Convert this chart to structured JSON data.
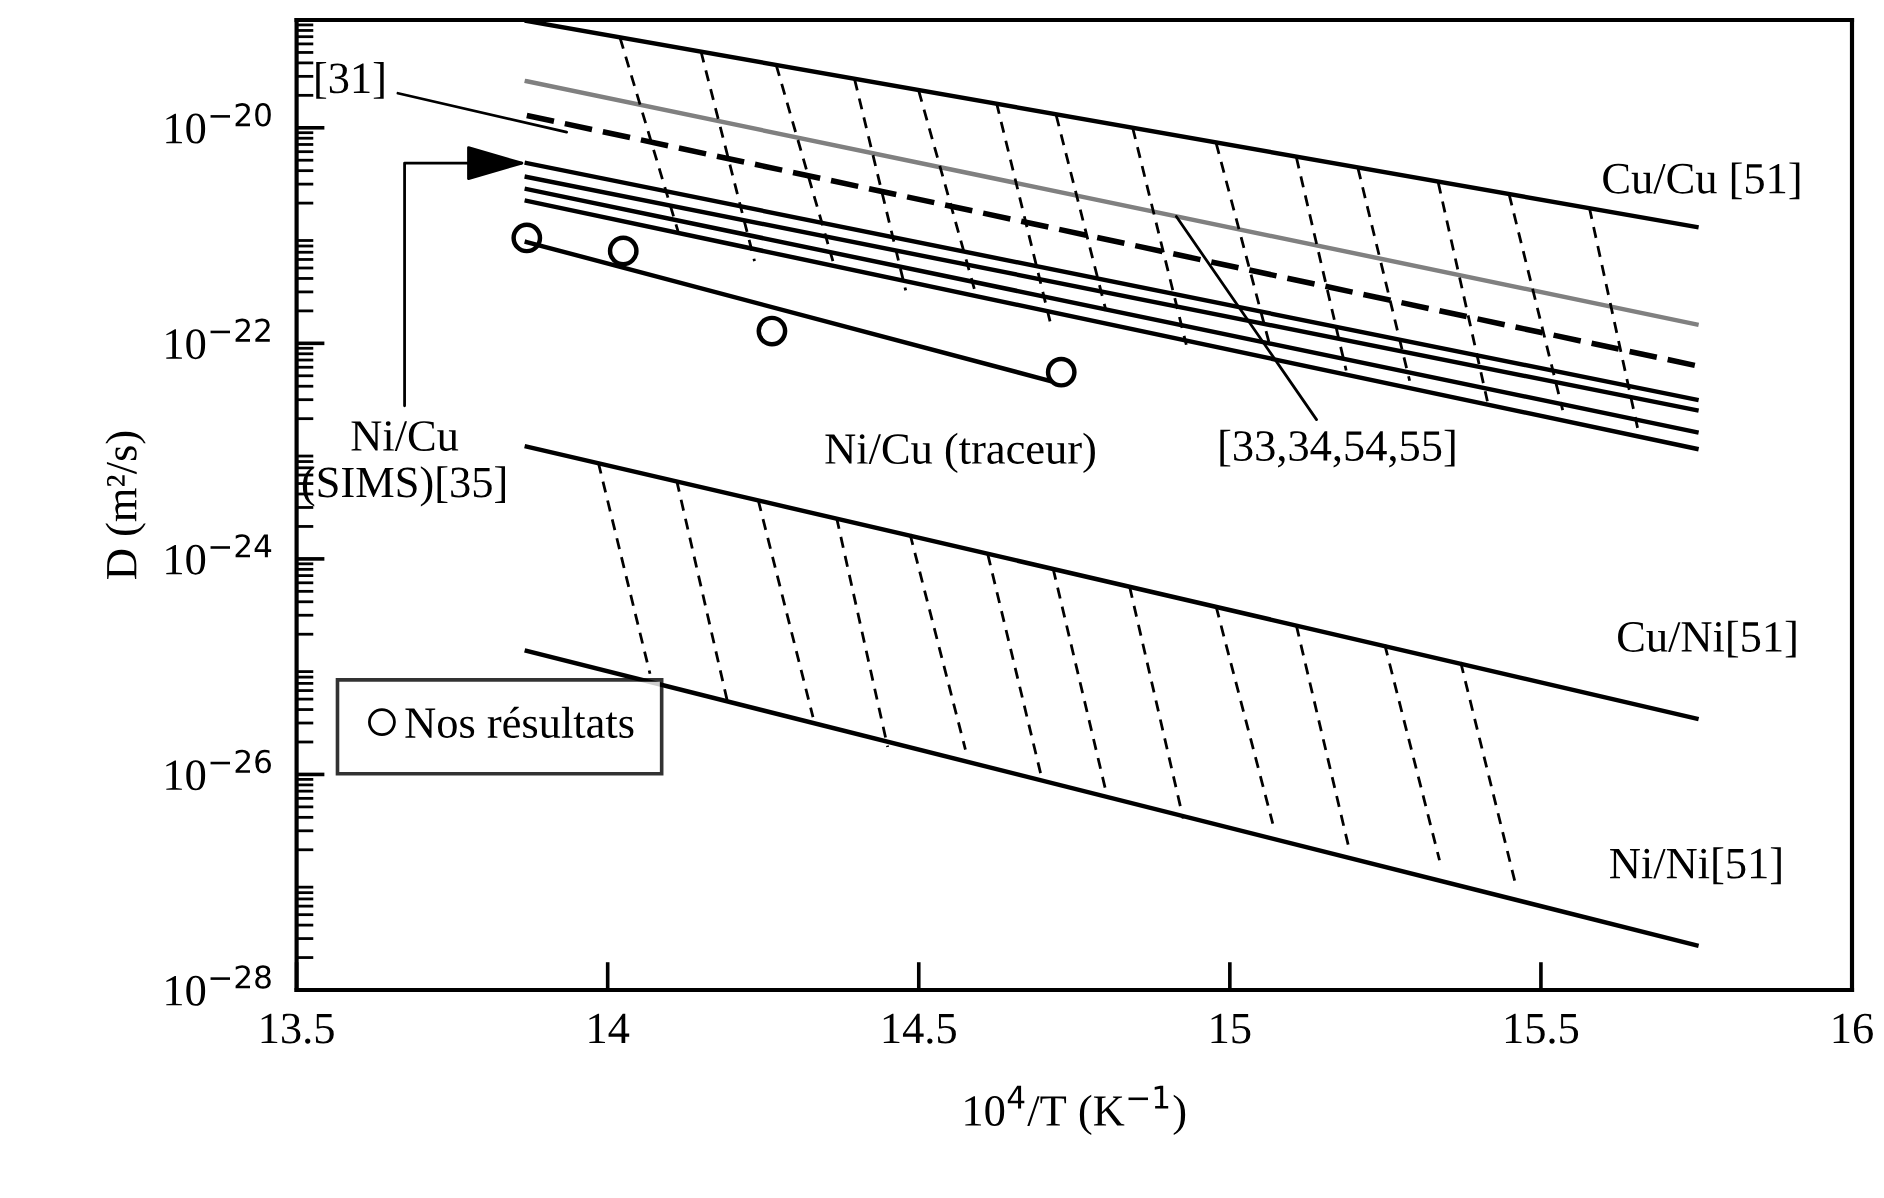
{
  "chart_data": {
    "type": "line",
    "xlabel": "10$^{4}$/T (K$^{−1}$)",
    "ylabel": "D (m²/s)",
    "log": "y",
    "grid": false,
    "legend": "lower left",
    "xlim": [
      13.5,
      16
    ],
    "xticks": [
      13.5,
      14,
      14.5,
      15,
      15.5,
      16
    ],
    "ylim": [
      1e-28,
      1e-19
    ],
    "yticks": [
      {
        "value": 1e-28,
        "label": "10$^{−28}$"
      },
      {
        "value": 1e-26,
        "label": "10$^{−26}$"
      },
      {
        "value": 1e-24,
        "label": "10$^{−24}$"
      },
      {
        "value": 1e-22,
        "label": "10$^{−22}$"
      },
      {
        "value": 1e-20,
        "label": "10$^{−20}$"
      }
    ],
    "series": [
      {
        "color": "#000000",
        "x": [
          13.87,
          15.75
        ],
        "values": [
          9.8e-20,
          1.2e-21
        ]
      },
      {
        "color": "#808080",
        "x": [
          13.87,
          15.75
        ],
        "values": [
          2.7e-20,
          1.5e-22
        ]
      },
      {
        "color": "#000000",
        "line_style": "dashed",
        "x": [
          13.87,
          15.75
        ],
        "values": [
          1.3e-20,
          6.2e-23
        ]
      },
      {
        "color": "#000000",
        "x": [
          13.87,
          15.75
        ],
        "values": [
          4.7e-21,
          3e-23
        ]
      },
      {
        "color": "#000000",
        "x": [
          13.87,
          15.75
        ],
        "values": [
          3.5e-21,
          2.4e-23
        ]
      },
      {
        "color": "#000000",
        "x": [
          13.87,
          15.75
        ],
        "values": [
          2.7e-21,
          1.5e-23
        ]
      },
      {
        "color": "#000000",
        "x": [
          13.87,
          15.75
        ],
        "values": [
          2.1e-21,
          1.05e-23
        ]
      },
      {
        "type": "scatter",
        "name": "Nos résultats",
        "marker": "circle",
        "color": "#000000",
        "x": [
          13.87,
          14.025,
          14.264,
          14.729
        ],
        "values": [
          9.5e-22,
          7.2e-22,
          1.3e-22,
          5.4e-23
        ]
      },
      {
        "color": "#000000",
        "x": [
          13.87,
          14.71
        ],
        "values": [
          8.7e-22,
          4.5e-23
        ]
      },
      {
        "color": "#000000",
        "x": [
          13.87,
          15.75
        ],
        "values": [
          1.1e-23,
          3.3e-26
        ]
      },
      {
        "color": "#000000",
        "x": [
          13.87,
          15.75
        ],
        "values": [
          1.4e-25,
          2.6e-28
        ]
      },
      {
        "type": "line",
        "color": "#000000",
        "line_style": "dotted",
        "x": [
          14.02,
          14.113
        ],
        "values": [
          6.8e-20,
          1.1e-21
        ]
      },
      {
        "type": "line",
        "color": "#000000",
        "line_style": "dotted",
        "x": [
          14.15,
          14.236
        ],
        "values": [
          5.1e-20,
          5.8e-22
        ]
      },
      {
        "type": "line",
        "color": "#000000",
        "line_style": "dotted",
        "x": [
          14.271,
          14.362
        ],
        "values": [
          3.8e-20,
          5.8e-22
        ]
      },
      {
        "type": "line",
        "color": "#000000",
        "line_style": "dotted",
        "x": [
          14.397,
          14.479
        ],
        "values": [
          2.8e-20,
          3.1e-22
        ]
      },
      {
        "type": "line",
        "color": "#000000",
        "line_style": "dotted",
        "x": [
          14.5,
          14.59
        ],
        "values": [
          2.2e-20,
          3.1e-22
        ]
      },
      {
        "type": "line",
        "color": "#000000",
        "line_style": "dotted",
        "x": [
          14.625,
          14.711
        ],
        "values": [
          1.7e-20,
          1.6e-22
        ]
      },
      {
        "type": "line",
        "color": "#000000",
        "line_style": "dotted",
        "x": [
          14.721,
          14.801
        ],
        "values": [
          1.3e-20,
          2e-22
        ]
      },
      {
        "type": "line",
        "color": "#000000",
        "line_style": "dotted",
        "x": [
          14.844,
          14.93
        ],
        "values": [
          9.9e-21,
          9.7e-23
        ]
      },
      {
        "type": "line",
        "color": "#000000",
        "line_style": "dotted",
        "x": [
          14.978,
          15.064
        ],
        "values": [
          7.2e-21,
          9.7e-23
        ]
      },
      {
        "type": "line",
        "color": "#000000",
        "line_style": "dotted",
        "x": [
          15.107,
          15.187
        ],
        "values": [
          5.3e-21,
          5.6e-23
        ]
      },
      {
        "type": "line",
        "color": "#000000",
        "line_style": "dotted",
        "x": [
          15.206,
          15.289
        ],
        "values": [
          4.2e-21,
          4.5e-23
        ]
      },
      {
        "type": "line",
        "color": "#000000",
        "line_style": "dotted",
        "x": [
          15.335,
          15.414
        ],
        "values": [
          3.1e-21,
          2.9e-23
        ]
      },
      {
        "type": "line",
        "color": "#000000",
        "line_style": "dotted",
        "x": [
          15.449,
          15.535
        ],
        "values": [
          2.4e-21,
          2.4e-23
        ]
      },
      {
        "type": "line",
        "color": "#000000",
        "line_style": "dotted",
        "x": [
          15.578,
          15.658
        ],
        "values": [
          1.8e-21,
          1.4e-23
        ]
      },
      {
        "type": "line",
        "color": "#000000",
        "line_style": "dotted",
        "x": [
          13.985,
          14.068
        ],
        "values": [
          7.8e-24,
          8.6e-26
        ]
      },
      {
        "type": "line",
        "color": "#000000",
        "line_style": "dotted",
        "x": [
          14.111,
          14.193
        ],
        "values": [
          5.3e-24,
          4.6e-26
        ]
      },
      {
        "type": "line",
        "color": "#000000",
        "line_style": "dotted",
        "x": [
          14.242,
          14.33
        ],
        "values": [
          3.5e-24,
          3.4e-26
        ]
      },
      {
        "type": "line",
        "color": "#000000",
        "line_style": "dotted",
        "x": [
          14.368,
          14.45
        ],
        "values": [
          2.4e-24,
          1.8e-26
        ]
      },
      {
        "type": "line",
        "color": "#000000",
        "line_style": "dotted",
        "x": [
          14.486,
          14.575
        ],
        "values": [
          1.7e-24,
          1.7e-26
        ]
      },
      {
        "type": "line",
        "color": "#000000",
        "line_style": "dotted",
        "x": [
          14.611,
          14.697
        ],
        "values": [
          1.1e-24,
          9.6e-27
        ]
      },
      {
        "type": "line",
        "color": "#000000",
        "line_style": "dotted",
        "x": [
          14.716,
          14.801
        ],
        "values": [
          8.1e-25,
          6.9e-27
        ]
      },
      {
        "type": "line",
        "color": "#000000",
        "line_style": "dotted",
        "x": [
          14.839,
          14.925
        ],
        "values": [
          5.5e-25,
          3.9e-27
        ]
      },
      {
        "type": "line",
        "color": "#000000",
        "line_style": "dotted",
        "x": [
          14.978,
          15.069
        ],
        "values": [
          3.6e-25,
          3.5e-27
        ]
      },
      {
        "type": "line",
        "color": "#000000",
        "line_style": "dotted",
        "x": [
          15.107,
          15.193
        ],
        "values": [
          2.4e-25,
          1.9e-27
        ]
      },
      {
        "type": "line",
        "color": "#000000",
        "line_style": "dotted",
        "x": [
          15.249,
          15.337
        ],
        "values": [
          1.6e-25,
          1.6e-27
        ]
      },
      {
        "type": "line",
        "color": "#000000",
        "line_style": "dotted",
        "x": [
          15.371,
          15.46
        ],
        "values": [
          1.1e-25,
          9.2e-28
        ]
      }
    ],
    "annotations": [
      {
        "text": "[31]",
        "x": 13.934,
        "y": 9.1e-21
      },
      {
        "text": "Ni/Cu\n(SIMS)[35]",
        "x": 13.87,
        "y": 4.7e-21
      },
      {
        "text": "Ni/Cu (traceur)",
        "x": 14.71,
        "y": 4.5e-23
      },
      {
        "text": "[33,34,54,55]",
        "x": 14.914,
        "y": 1.5e-21
      },
      {
        "text": "Cu/Cu [51]",
        "x": 15.75,
        "y": 1.2e-21
      },
      {
        "text": "Cu/Ni[51]",
        "x": 15.75,
        "y": 3.3e-26
      },
      {
        "text": "Ni/Ni[51]",
        "x": 15.75,
        "y": 2.6e-28
      }
    ]
  }
}
